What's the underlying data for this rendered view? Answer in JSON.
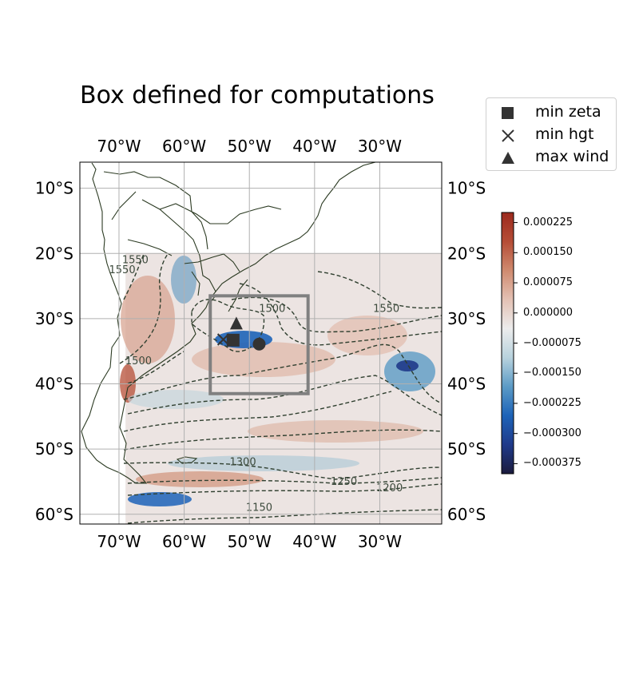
{
  "title": "Box defined for computations",
  "map": {
    "lon_range": [
      -76,
      -20.5
    ],
    "lat_range": [
      -61.5,
      -6
    ],
    "lon_ticks": [
      {
        "lon": -70,
        "label": "70°W"
      },
      {
        "lon": -60,
        "label": "60°W"
      },
      {
        "lon": -50,
        "label": "50°W"
      },
      {
        "lon": -40,
        "label": "40°W"
      },
      {
        "lon": -30,
        "label": "30°W"
      }
    ],
    "lat_ticks": [
      {
        "lat": -10,
        "label": "10°S"
      },
      {
        "lat": -20,
        "label": "20°S"
      },
      {
        "lat": -30,
        "label": "30°S"
      },
      {
        "lat": -40,
        "label": "40°S"
      },
      {
        "lat": -50,
        "label": "50°S"
      },
      {
        "lat": -60,
        "label": "60°S"
      }
    ],
    "field_extent": {
      "lon": [
        -69,
        -20.5
      ],
      "lat": [
        -61.5,
        -20
      ]
    },
    "box": {
      "lon": [
        -56,
        -41
      ],
      "lat": [
        -41.5,
        -26.5
      ],
      "color": "#808080"
    },
    "grid": true,
    "contour_color": "#2f3f2f",
    "contour_labels": [
      {
        "text": "1550",
        "lon": -69.5,
        "lat": -23
      },
      {
        "text": "1550",
        "lon": -67.5,
        "lat": -21.5
      },
      {
        "text": "1500",
        "lon": -46.5,
        "lat": -29
      },
      {
        "text": "1550",
        "lon": -29,
        "lat": -29
      },
      {
        "text": "1500",
        "lon": -67,
        "lat": -37
      },
      {
        "text": "1300",
        "lon": -51,
        "lat": -52.5
      },
      {
        "text": "1250",
        "lon": -35.5,
        "lat": -55.5
      },
      {
        "text": "1200",
        "lon": -28.5,
        "lat": -56.5
      },
      {
        "text": "1150",
        "lon": -48.5,
        "lat": -59.5
      }
    ]
  },
  "markers": [
    {
      "type": "min_zeta",
      "lon": -52.5,
      "lat": -33.3,
      "shape": "square"
    },
    {
      "type": "min_hgt",
      "lon": -54,
      "lat": -33.2,
      "shape": "x"
    },
    {
      "type": "max_wind",
      "lon": -52,
      "lat": -30.8,
      "shape": "triangle"
    },
    {
      "type": "center",
      "lon": -48.5,
      "lat": -33.9,
      "shape": "circle"
    }
  ],
  "legend": {
    "items": [
      {
        "label": "min zeta",
        "icon": "square-marker"
      },
      {
        "label": "min hgt",
        "icon": "x-marker"
      },
      {
        "label": "max wind",
        "icon": "triangle-marker"
      }
    ]
  },
  "colorbar": {
    "min": -0.0004,
    "max": 0.00025,
    "ticks": [
      "0.000225",
      "0.000150",
      "0.000075",
      "0.000000",
      "−0.000075",
      "−0.000150",
      "−0.000225",
      "−0.000300",
      "−0.000375"
    ],
    "tick_values": [
      0.000225,
      0.00015,
      7.5e-05,
      0,
      -7.5e-05,
      -0.00015,
      -0.000225,
      -0.0003,
      -0.000375
    ],
    "colors": [
      "#1b1b3d",
      "#1f3a8a",
      "#1d63b8",
      "#5c9bc6",
      "#b8d2dd",
      "#ececec",
      "#e3c1b4",
      "#cf8a6f",
      "#b54d36",
      "#9c2a1e"
    ]
  }
}
